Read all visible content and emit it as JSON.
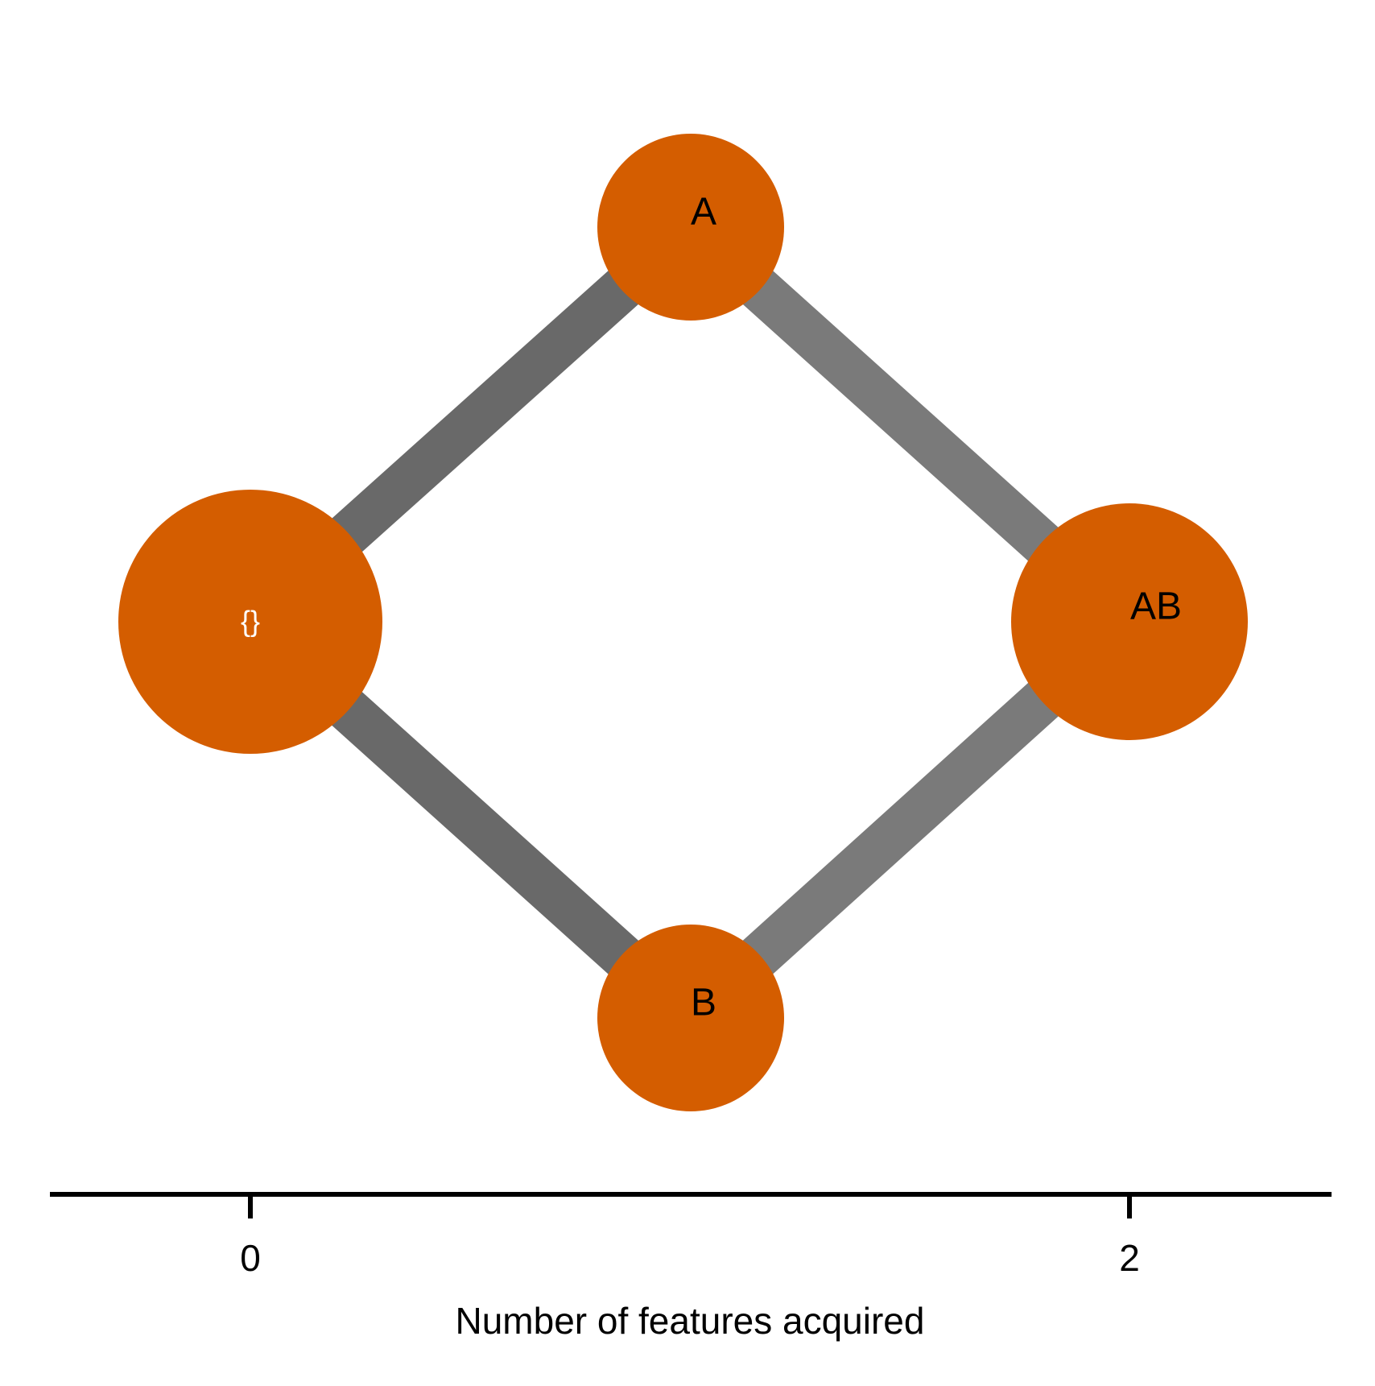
{
  "colors": {
    "node": "#d45d00",
    "edge_dark": "#696969",
    "edge_light": "#7a7a7a",
    "axis": "#000000",
    "empty_label": "#ffffff"
  },
  "nodes": [
    {
      "id": "empty",
      "label": "{}",
      "features": 0
    },
    {
      "id": "A",
      "label": "A",
      "features": 1
    },
    {
      "id": "B",
      "label": "B",
      "features": 1
    },
    {
      "id": "AB",
      "label": "AB",
      "features": 2
    }
  ],
  "edges": [
    {
      "from": "empty",
      "to": "A"
    },
    {
      "from": "empty",
      "to": "B"
    },
    {
      "from": "A",
      "to": "AB"
    },
    {
      "from": "B",
      "to": "AB"
    }
  ],
  "axis": {
    "title": "Number of features acquired",
    "ticks": [
      {
        "value": 0,
        "label": "0"
      },
      {
        "value": 2,
        "label": "2"
      }
    ]
  }
}
